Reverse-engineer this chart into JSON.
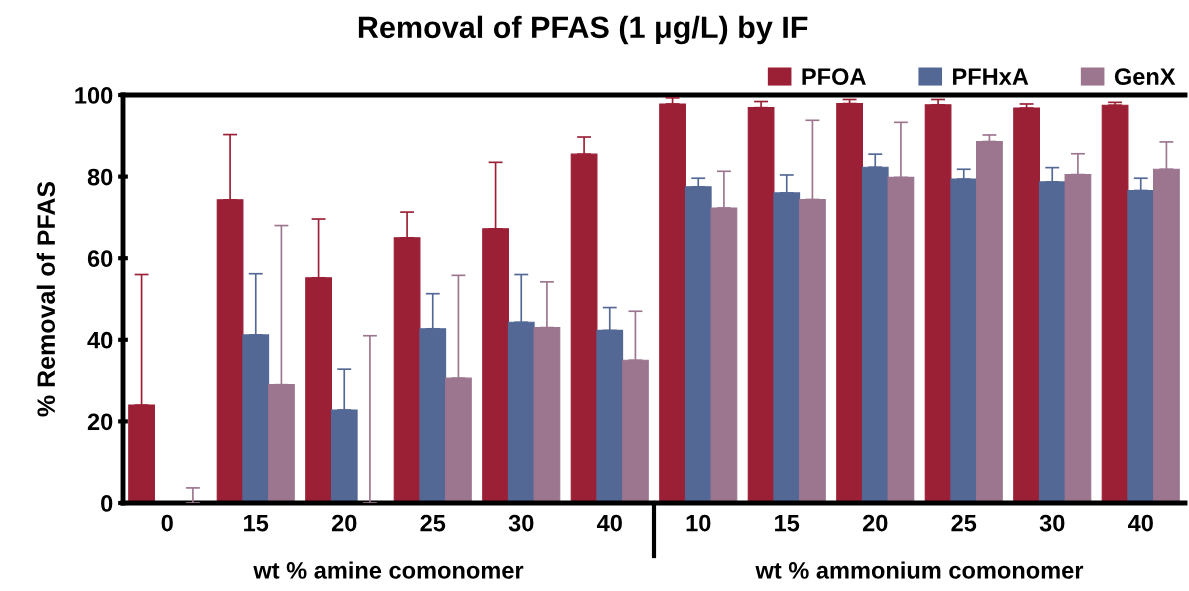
{
  "chart_data": {
    "type": "bar",
    "title": "Removal of PFAS (1 μg/L) by IF",
    "ylabel": "% Removal of PFAS",
    "categories": [
      "0",
      "15",
      "20",
      "25",
      "30",
      "40",
      "10",
      "15",
      "20",
      "25",
      "30",
      "40"
    ],
    "series": [
      {
        "name": "PFOA",
        "color": "#9b1f35",
        "values": [
          24,
          74.3,
          55.2,
          65,
          67.2,
          85.5,
          97.8,
          96.9,
          97.9,
          97.6,
          96.8,
          97.5
        ],
        "errors": [
          [
            24,
            56
          ],
          [
            74.3,
            90.3
          ],
          [
            55.2,
            69.6
          ],
          [
            65,
            71.3
          ],
          [
            67.2,
            83.5
          ],
          [
            85.5,
            89.7
          ],
          [
            97.8,
            99.3
          ],
          [
            96.9,
            98.4
          ],
          [
            97.9,
            98.9
          ],
          [
            97.6,
            98.9
          ],
          [
            96.8,
            97.8
          ],
          [
            97.5,
            98.2
          ]
        ]
      },
      {
        "name": "PFHxA",
        "color": "#536895",
        "values": [
          0,
          41.2,
          22.8,
          42.7,
          44.3,
          42.3,
          77.5,
          76,
          82.3,
          79.4,
          78.7,
          76.6
        ],
        "errors": [
          null,
          [
            41.2,
            56.2
          ],
          [
            22.8,
            32.8
          ],
          [
            42.7,
            51.3
          ],
          [
            44.3,
            56
          ],
          [
            42.3,
            47.9
          ],
          [
            77.5,
            79.6
          ],
          [
            76,
            80.4
          ],
          [
            82.3,
            85.5
          ],
          [
            79.4,
            81.8
          ],
          [
            78.7,
            82.2
          ],
          [
            76.6,
            79.6
          ]
        ]
      },
      {
        "name": "GenX",
        "color": "#9c758f",
        "values": [
          0,
          29,
          0,
          30.6,
          43,
          35,
          72.3,
          74.4,
          79.8,
          88.6,
          80.5,
          81.8
        ],
        "errors": [
          [
            0,
            3.7
          ],
          [
            29,
            68
          ],
          [
            0,
            41
          ],
          [
            30.6,
            55.8
          ],
          [
            43,
            54.2
          ],
          [
            35,
            47
          ],
          [
            72.3,
            81.3
          ],
          [
            74.4,
            93.8
          ],
          [
            79.8,
            93.3
          ],
          [
            88.6,
            90.2
          ],
          [
            80.5,
            85.6
          ],
          [
            81.8,
            88.5
          ]
        ]
      }
    ],
    "ylim": [
      0,
      100
    ],
    "yticks": [
      0,
      20,
      40,
      60,
      80,
      100
    ],
    "grid": false,
    "legend": "top right",
    "annotations": [
      "wt % amine comonomer",
      "wt % ammonium comonomer"
    ]
  }
}
